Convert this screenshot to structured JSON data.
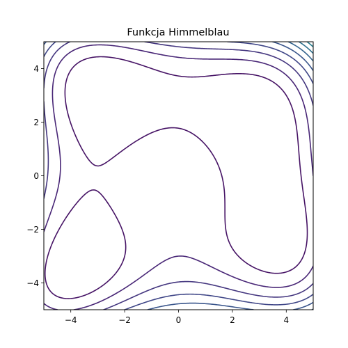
{
  "chart_data": {
    "type": "contour",
    "title": "Funkcja Himmelblau",
    "function": "f(x, y) = (x^2 + y - 11)^2 + (x + y^2 - 7)^2",
    "xlim": [
      -5,
      5
    ],
    "ylim": [
      -5,
      5
    ],
    "xticks": [
      -4,
      -2,
      0,
      2,
      4
    ],
    "yticks": [
      -4,
      -2,
      0,
      2,
      4
    ],
    "xtick_labels": [
      "−4",
      "−2",
      "0",
      "2",
      "4"
    ],
    "ytick_labels": [
      "−4",
      "−2",
      "0",
      "2",
      "4"
    ],
    "levels": [
      0,
      100,
      200,
      300,
      400,
      500,
      600,
      700,
      800,
      900,
      1000,
      1100,
      1200,
      1300,
      1400,
      1500,
      1600,
      1700,
      1800,
      1900
    ],
    "colormap": "viridis",
    "colormap_range": [
      0,
      1900
    ],
    "grid": false,
    "legend": "none"
  }
}
